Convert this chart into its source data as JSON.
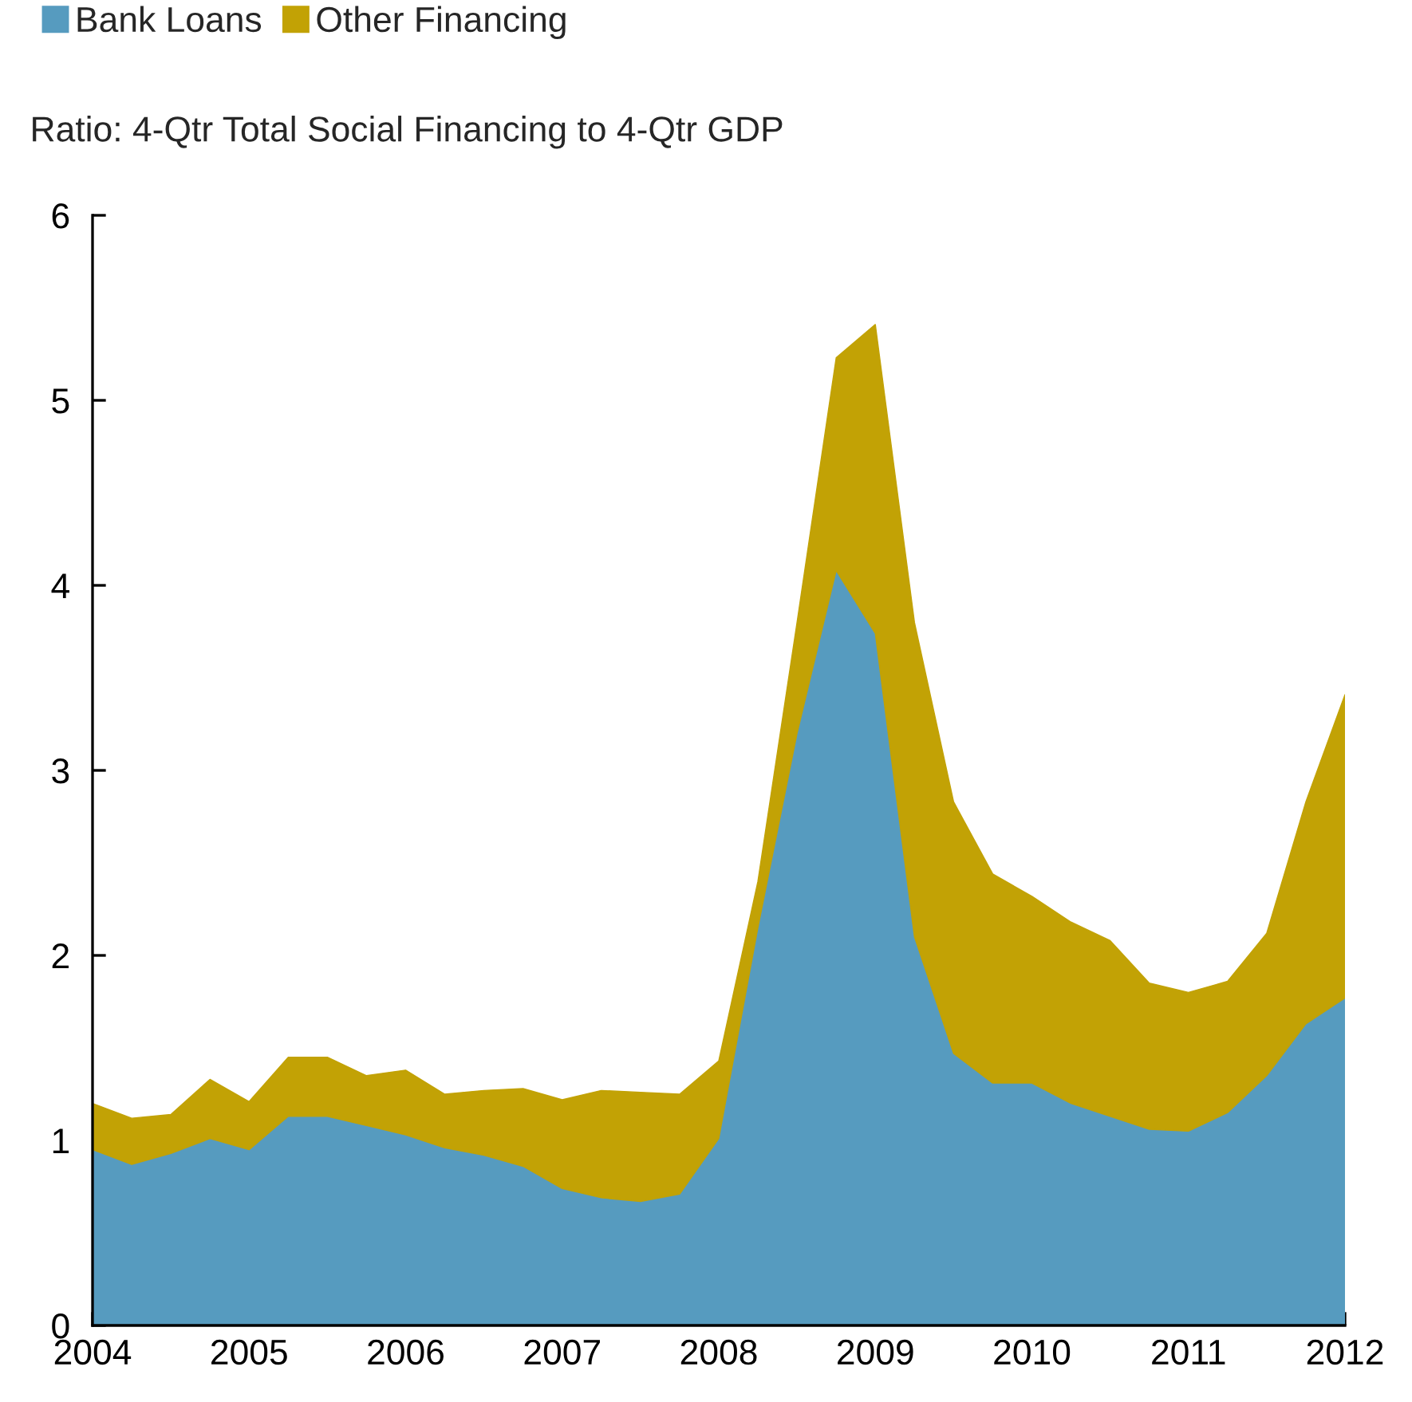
{
  "chart_data": {
    "type": "area",
    "stacked": true,
    "title": "Ratio: 4-Qtr Total Social Financing to 4-Qtr GDP",
    "x": [
      2004,
      2004.25,
      2004.5,
      2004.75,
      2005,
      2005.25,
      2005.5,
      2005.75,
      2006,
      2006.25,
      2006.5,
      2006.75,
      2007,
      2007.25,
      2007.5,
      2007.75,
      2008,
      2008.25,
      2008.5,
      2008.75,
      2009,
      2009.25,
      2009.5,
      2009.75,
      2010,
      2010.25,
      2010.5,
      2010.75,
      2011,
      2011.25,
      2011.5,
      2011.75,
      2012
    ],
    "series": [
      {
        "name": "Bank Loans",
        "color": "#569bbf",
        "values": [
          0.95,
          0.87,
          0.93,
          1.01,
          0.95,
          1.13,
          1.13,
          1.08,
          1.03,
          0.96,
          0.92,
          0.86,
          0.74,
          0.69,
          0.67,
          0.71,
          1.01,
          2.15,
          3.2,
          4.08,
          3.74,
          2.1,
          1.47,
          1.31,
          1.31,
          1.2,
          1.13,
          1.06,
          1.05,
          1.15,
          1.35,
          1.63,
          1.77
        ]
      },
      {
        "name": "Other Financing",
        "color": "#c2a205",
        "values": [
          0.25,
          0.25,
          0.21,
          0.32,
          0.26,
          0.32,
          0.32,
          0.27,
          0.35,
          0.29,
          0.35,
          0.42,
          0.48,
          0.58,
          0.59,
          0.54,
          0.42,
          0.25,
          0.6,
          1.15,
          1.67,
          1.7,
          1.36,
          1.13,
          1.01,
          0.98,
          0.95,
          0.79,
          0.75,
          0.71,
          0.77,
          1.2,
          1.64
        ]
      }
    ],
    "xlim": [
      2004,
      2012
    ],
    "xticks": [
      2004,
      2005,
      2006,
      2007,
      2008,
      2009,
      2010,
      2011,
      2012
    ],
    "ylim": [
      0,
      6
    ],
    "yticks": [
      0,
      1,
      2,
      3,
      4,
      5,
      6
    ],
    "grid": false,
    "legend": "top left"
  }
}
